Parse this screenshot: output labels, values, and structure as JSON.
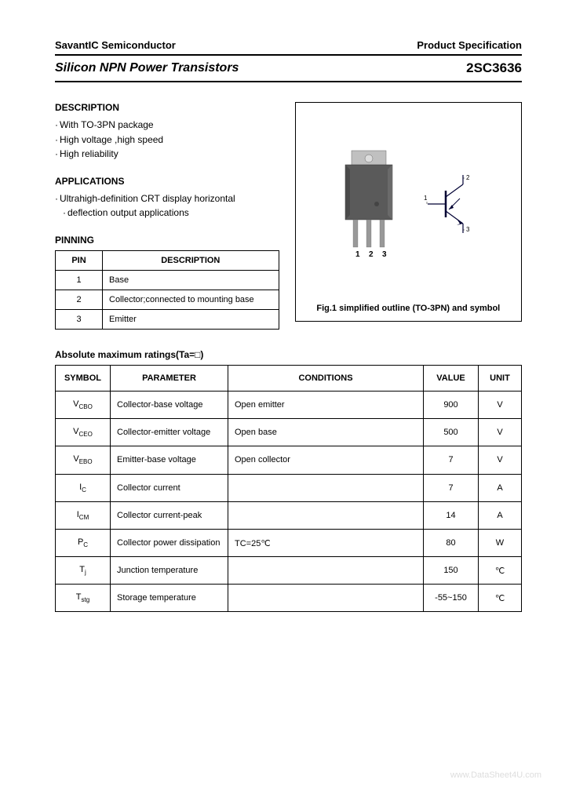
{
  "header": {
    "company": "SavantIC Semiconductor",
    "doc_type": "Product Specification"
  },
  "title": {
    "left": "Silicon NPN Power Transistors",
    "right": "2SC3636"
  },
  "description": {
    "heading": "DESCRIPTION",
    "items": [
      "With TO-3PN package",
      "High voltage ,high speed",
      "High reliability"
    ]
  },
  "applications": {
    "heading": "APPLICATIONS",
    "items": [
      "Ultrahigh-definition CRT display horizontal",
      "deflection output applications"
    ]
  },
  "pinning": {
    "heading": "PINNING",
    "columns": [
      "PIN",
      "DESCRIPTION"
    ],
    "rows": [
      {
        "pin": "1",
        "desc": "Base"
      },
      {
        "pin": "2",
        "desc": "Collector;connected to mounting base"
      },
      {
        "pin": "3",
        "desc": "Emitter"
      }
    ]
  },
  "figure": {
    "caption": "Fig.1 simplified outline (TO-3PN) and symbol",
    "pin_labels": [
      "1",
      "2",
      "3"
    ],
    "symbol_labels": {
      "base": "1",
      "collector": "2",
      "emitter": "3"
    },
    "package_body_color": "#5a5a5a",
    "package_tab_color": "#c0c0c0",
    "lead_color": "#999",
    "symbol_stroke": "#000033"
  },
  "ratings": {
    "title": "Absolute maximum ratings(Ta=□)",
    "columns": [
      "SYMBOL",
      "PARAMETER",
      "CONDITIONS",
      "VALUE",
      "UNIT"
    ],
    "rows": [
      {
        "sym": "V",
        "sub": "CBO",
        "param": "Collector-base voltage",
        "cond": "Open emitter",
        "val": "900",
        "unit": "V"
      },
      {
        "sym": "V",
        "sub": "CEO",
        "param": "Collector-emitter voltage",
        "cond": "Open base",
        "val": "500",
        "unit": "V"
      },
      {
        "sym": "V",
        "sub": "EBO",
        "param": "Emitter-base voltage",
        "cond": "Open collector",
        "val": "7",
        "unit": "V"
      },
      {
        "sym": "I",
        "sub": "C",
        "param": "Collector current",
        "cond": "",
        "val": "7",
        "unit": "A"
      },
      {
        "sym": "I",
        "sub": "CM",
        "param": "Collector current-peak",
        "cond": "",
        "val": "14",
        "unit": "A"
      },
      {
        "sym": "P",
        "sub": "C",
        "param": "Collector power dissipation",
        "cond": "TC=25℃",
        "val": "80",
        "unit": "W"
      },
      {
        "sym": "T",
        "sub": "j",
        "param": "Junction temperature",
        "cond": "",
        "val": "150",
        "unit": "℃"
      },
      {
        "sym": "T",
        "sub": "stg",
        "param": "Storage temperature",
        "cond": "",
        "val": "-55~150",
        "unit": "℃"
      }
    ]
  },
  "watermark": "www.DataSheet4U.com",
  "style": {
    "border_color": "#000000",
    "text_color": "#000000",
    "background": "#ffffff",
    "font_family": "Arial, sans-serif",
    "title_fontsize": 16,
    "body_fontsize": 12,
    "table_fontsize": 11
  }
}
